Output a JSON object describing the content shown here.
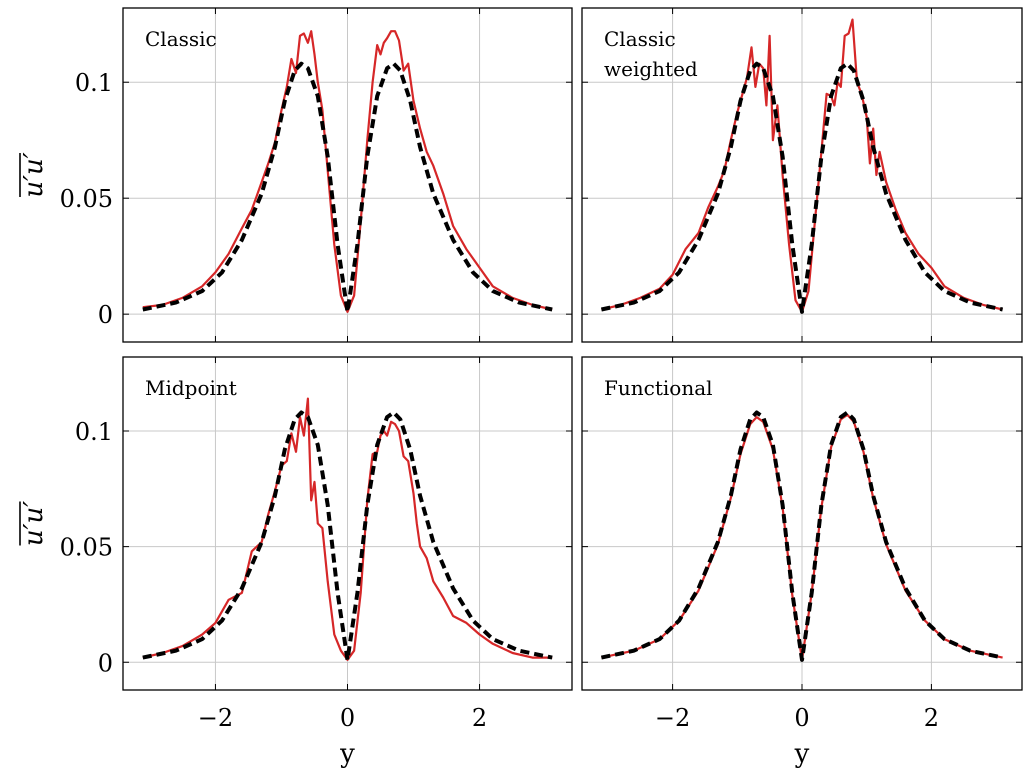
{
  "chart_data": {
    "type": "line",
    "layout": "2x2",
    "xlabel": "y",
    "ylabel": "u′u′",
    "xlim": [
      -3.4,
      3.4
    ],
    "ylim": [
      -0.012,
      0.132
    ],
    "xticks": [
      -2,
      0,
      2
    ],
    "xtick_labels": [
      "−2",
      "0",
      "2"
    ],
    "yticks": [
      0,
      0.05,
      0.1
    ],
    "ytick_labels": [
      "0",
      "0.05",
      "0.1"
    ],
    "grid": true,
    "series_colors": [
      "#d62728",
      "#000000"
    ],
    "series_styles": [
      "solid",
      "dashed"
    ],
    "reference": {
      "x": [
        -3.1,
        -2.6,
        -2.2,
        -1.9,
        -1.6,
        -1.3,
        -1.1,
        -0.95,
        -0.8,
        -0.7,
        -0.6,
        -0.45,
        -0.3,
        -0.15,
        0,
        0.15,
        0.3,
        0.45,
        0.6,
        0.7,
        0.8,
        0.95,
        1.1,
        1.3,
        1.6,
        1.9,
        2.2,
        2.6,
        3.1
      ],
      "y": [
        0.002,
        0.005,
        0.01,
        0.018,
        0.032,
        0.052,
        0.072,
        0.092,
        0.105,
        0.108,
        0.106,
        0.094,
        0.068,
        0.03,
        0.001,
        0.03,
        0.068,
        0.094,
        0.106,
        0.108,
        0.105,
        0.092,
        0.072,
        0.052,
        0.032,
        0.018,
        0.01,
        0.005,
        0.002
      ]
    },
    "panels": [
      {
        "label": [
          "Classic"
        ],
        "xlabel": "",
        "ylabel": "u′u′",
        "series": [
          {
            "x": [
              -3.1,
              -2.8,
              -2.5,
              -2.2,
              -2.0,
              -1.8,
              -1.6,
              -1.45,
              -1.3,
              -1.2,
              -1.1,
              -1.0,
              -0.92,
              -0.85,
              -0.78,
              -0.72,
              -0.66,
              -0.6,
              -0.55,
              -0.5,
              -0.45,
              -0.38,
              -0.3,
              -0.2,
              -0.1,
              0,
              0.1,
              0.2,
              0.3,
              0.38,
              0.45,
              0.5,
              0.55,
              0.6,
              0.66,
              0.72,
              0.78,
              0.85,
              0.92,
              1.0,
              1.1,
              1.2,
              1.3,
              1.45,
              1.6,
              1.8,
              2.0,
              2.2,
              2.5,
              2.8,
              3.1
            ],
            "y": [
              0.003,
              0.004,
              0.007,
              0.012,
              0.018,
              0.026,
              0.037,
              0.045,
              0.057,
              0.065,
              0.074,
              0.088,
              0.098,
              0.11,
              0.104,
              0.12,
              0.121,
              0.117,
              0.122,
              0.112,
              0.1,
              0.088,
              0.062,
              0.03,
              0.008,
              0.001,
              0.008,
              0.04,
              0.075,
              0.1,
              0.116,
              0.112,
              0.117,
              0.119,
              0.122,
              0.122,
              0.118,
              0.105,
              0.108,
              0.092,
              0.08,
              0.07,
              0.064,
              0.052,
              0.038,
              0.028,
              0.02,
              0.012,
              0.007,
              0.004,
              0.002
            ]
          }
        ]
      },
      {
        "label": [
          "Classic",
          "weighted"
        ],
        "xlabel": "",
        "ylabel": "",
        "series": [
          {
            "x": [
              -3.1,
              -2.8,
              -2.5,
              -2.2,
              -2.0,
              -1.8,
              -1.6,
              -1.45,
              -1.3,
              -1.2,
              -1.1,
              -1.0,
              -0.92,
              -0.85,
              -0.78,
              -0.72,
              -0.66,
              -0.6,
              -0.55,
              -0.5,
              -0.45,
              -0.38,
              -0.3,
              -0.2,
              -0.1,
              0,
              0.1,
              0.2,
              0.3,
              0.38,
              0.45,
              0.5,
              0.55,
              0.6,
              0.66,
              0.72,
              0.78,
              0.85,
              0.92,
              1.0,
              1.05,
              1.1,
              1.15,
              1.2,
              1.3,
              1.45,
              1.6,
              1.8,
              2.0,
              2.2,
              2.5,
              2.8,
              3.1
            ],
            "y": [
              0.002,
              0.004,
              0.007,
              0.011,
              0.017,
              0.028,
              0.035,
              0.046,
              0.055,
              0.062,
              0.075,
              0.087,
              0.095,
              0.102,
              0.115,
              0.098,
              0.108,
              0.106,
              0.09,
              0.12,
              0.075,
              0.09,
              0.06,
              0.03,
              0.006,
              0.001,
              0.01,
              0.04,
              0.07,
              0.095,
              0.094,
              0.09,
              0.1,
              0.098,
              0.12,
              0.121,
              0.127,
              0.1,
              0.095,
              0.085,
              0.065,
              0.08,
              0.06,
              0.07,
              0.057,
              0.045,
              0.035,
              0.026,
              0.02,
              0.012,
              0.007,
              0.004,
              0.002
            ]
          }
        ]
      },
      {
        "label": [
          "Midpoint"
        ],
        "xlabel": "y",
        "ylabel": "u′u′",
        "series": [
          {
            "x": [
              -3.1,
              -2.8,
              -2.5,
              -2.2,
              -2.0,
              -1.8,
              -1.6,
              -1.45,
              -1.3,
              -1.2,
              -1.1,
              -1.0,
              -0.92,
              -0.85,
              -0.78,
              -0.72,
              -0.66,
              -0.6,
              -0.55,
              -0.5,
              -0.45,
              -0.38,
              -0.3,
              -0.2,
              -0.1,
              0,
              0.1,
              0.2,
              0.3,
              0.38,
              0.45,
              0.5,
              0.55,
              0.6,
              0.66,
              0.72,
              0.78,
              0.85,
              0.92,
              1.0,
              1.05,
              1.1,
              1.2,
              1.3,
              1.45,
              1.6,
              1.8,
              2.0,
              2.2,
              2.5,
              2.8,
              3.1
            ],
            "y": [
              0.002,
              0.004,
              0.007,
              0.012,
              0.017,
              0.027,
              0.03,
              0.048,
              0.052,
              0.064,
              0.074,
              0.085,
              0.087,
              0.099,
              0.091,
              0.106,
              0.098,
              0.114,
              0.07,
              0.078,
              0.06,
              0.058,
              0.035,
              0.012,
              0.005,
              0.001,
              0.005,
              0.03,
              0.07,
              0.09,
              0.091,
              0.098,
              0.1,
              0.098,
              0.104,
              0.103,
              0.1,
              0.089,
              0.087,
              0.073,
              0.06,
              0.05,
              0.045,
              0.035,
              0.028,
              0.02,
              0.017,
              0.012,
              0.008,
              0.004,
              0.002,
              0.002
            ]
          }
        ]
      },
      {
        "label": [
          "Functional"
        ],
        "xlabel": "y",
        "ylabel": "",
        "series": [
          {
            "x": [
              -3.1,
              -2.6,
              -2.2,
              -1.9,
              -1.6,
              -1.3,
              -1.1,
              -0.95,
              -0.8,
              -0.7,
              -0.6,
              -0.45,
              -0.3,
              -0.15,
              0,
              0.15,
              0.3,
              0.45,
              0.6,
              0.7,
              0.8,
              0.95,
              1.1,
              1.3,
              1.6,
              1.9,
              2.2,
              2.6,
              3.1
            ],
            "y": [
              0.002,
              0.005,
              0.01,
              0.018,
              0.031,
              0.051,
              0.071,
              0.09,
              0.103,
              0.106,
              0.104,
              0.092,
              0.067,
              0.029,
              0.001,
              0.03,
              0.067,
              0.093,
              0.105,
              0.107,
              0.104,
              0.091,
              0.071,
              0.051,
              0.031,
              0.018,
              0.01,
              0.005,
              0.002
            ]
          }
        ]
      }
    ]
  }
}
